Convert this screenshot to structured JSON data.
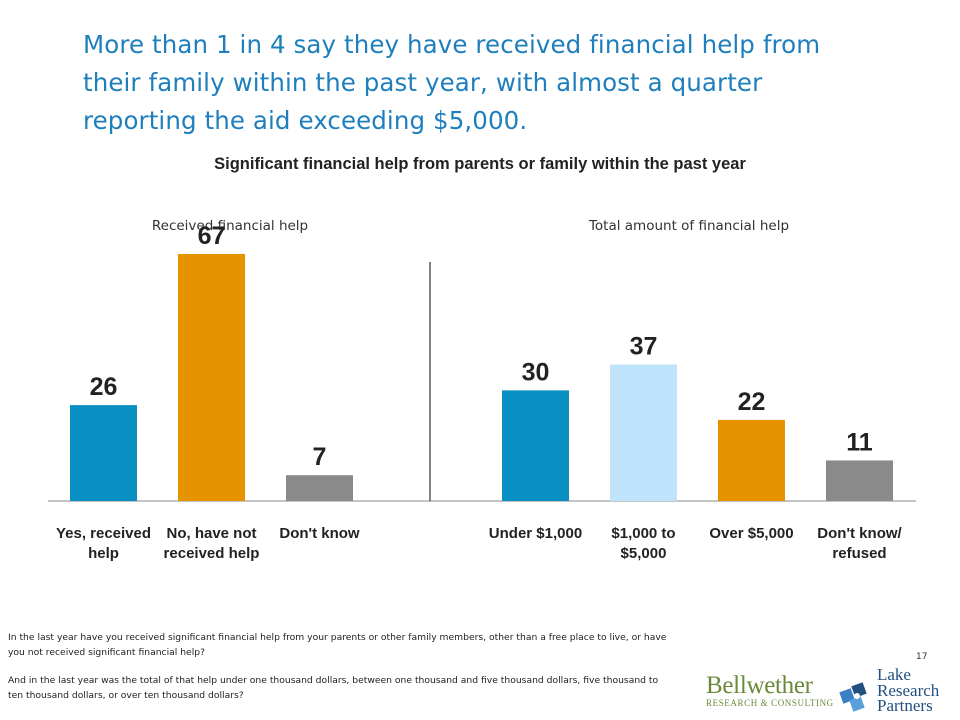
{
  "headline": "More than 1 in 4 say they have received financial help from their family within the past year, with almost a quarter reporting the aid exceeding $5,000.",
  "chart_data": [
    {
      "type": "bar",
      "title": "Significant financial help from parents or family within the past year",
      "subtitle": "Received financial help",
      "categories": [
        "Yes, received help",
        "No, have not received help",
        "Don't know"
      ],
      "values": [
        26,
        67,
        7
      ],
      "colors": [
        "#0a8fc2",
        "#e59400",
        "#8a8a8a"
      ],
      "ylim": [
        0,
        80
      ]
    },
    {
      "type": "bar",
      "subtitle": "Total amount of financial help",
      "categories": [
        "Under $1,000",
        "$1,000 to $5,000",
        "Over $5,000",
        "Don't know/ refused"
      ],
      "values": [
        30,
        37,
        22,
        11
      ],
      "colors": [
        "#0a8fc2",
        "#bfe3fa",
        "#e59400",
        "#8a8a8a"
      ],
      "ylim": [
        0,
        80
      ]
    }
  ],
  "footnote": [
    "In the last year have you received significant financial help from your parents or other family members, other than a free place to live, or have you not received significant financial help?",
    "And in the last year was the total of that help under one thousand dollars, between one thousand and five thousand dollars, five thousand to ten thousand dollars, or over ten thousand dollars?"
  ],
  "page_number": "17",
  "logos": {
    "bellwether_name": "Bellwether",
    "bellwether_sub": "RESEARCH & CONSULTING",
    "lake_line1": "Lake",
    "lake_line2": "Research",
    "lake_line3": "Partners"
  }
}
